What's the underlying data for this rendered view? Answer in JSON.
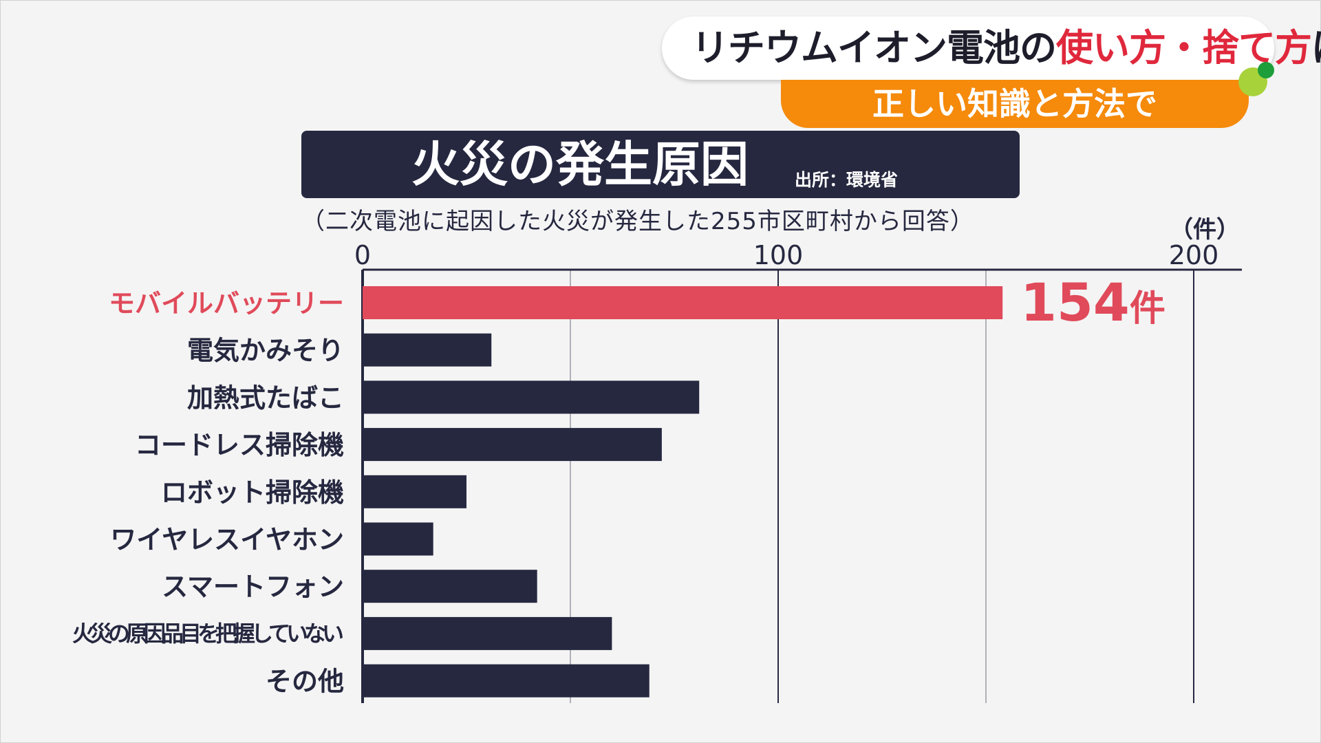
{
  "caption": {
    "headline_part1": "リチウムイオン電池の",
    "headline_highlight": "使い方・捨て方",
    "headline_part2": "は？",
    "subline": "正しい知識と方法で"
  },
  "colors": {
    "highlight_bar": "#e04a5a",
    "bar": "#262840",
    "caption_accent": "#e0283c",
    "caption_band": "#f58a0b"
  },
  "chart_data": {
    "type": "bar",
    "orientation": "horizontal",
    "title": "火災の発生原因",
    "source": "出所：環境省",
    "subtitle": "（二次電池に起因した火災が発生した255市区町村から回答）",
    "unit": "（件）",
    "categories": [
      "モバイルバッテリー",
      "電気かみそり",
      "加熱式たばこ",
      "コードレス掃除機",
      "ロボット掃除機",
      "ワイヤレスイヤホン",
      "スマートフォン",
      "火災の原因品目を把握していない",
      "その他"
    ],
    "values": [
      154,
      31,
      81,
      72,
      25,
      17,
      42,
      60,
      69
    ],
    "highlight_index": 0,
    "highlight_label": "154件",
    "xlim": [
      0,
      210
    ],
    "xticks": [
      0,
      100,
      200
    ],
    "grid_lines": [
      50,
      100,
      150,
      200
    ],
    "grid": true
  }
}
